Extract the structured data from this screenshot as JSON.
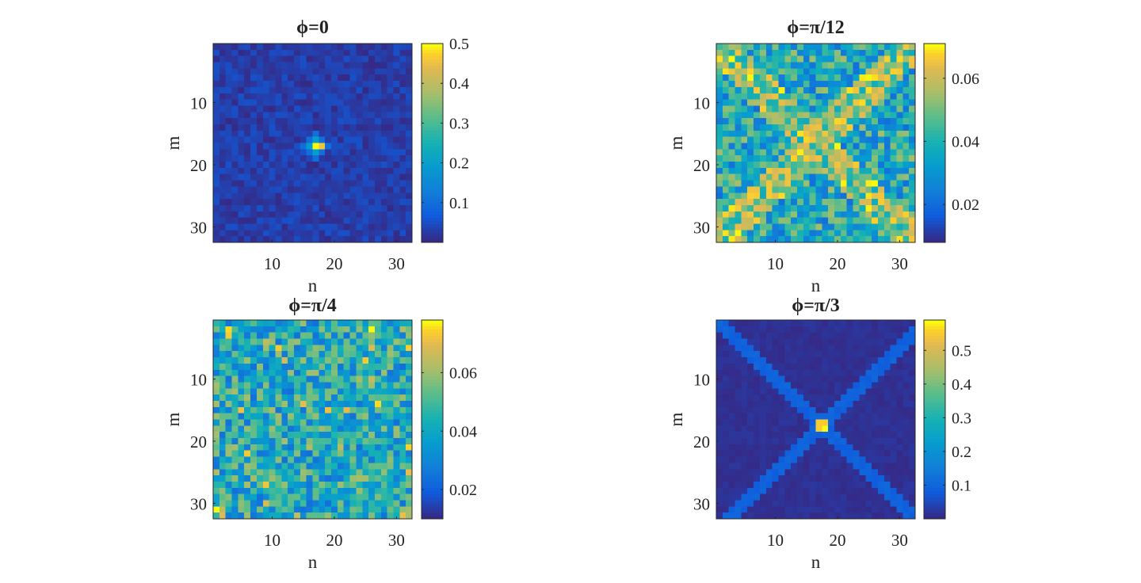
{
  "chart_data": [
    {
      "type": "heatmap",
      "title": "ϕ=0",
      "pattern": "center-peak",
      "grid_size": [
        32,
        32
      ],
      "xlabel": "n",
      "ylabel": "m",
      "xlim": [
        0.5,
        32.5
      ],
      "ylim": [
        0.5,
        32.5
      ],
      "xticks": [
        10,
        20,
        30
      ],
      "yticks": [
        10,
        20,
        30
      ],
      "peak_cell": {
        "n": 17,
        "m": 17,
        "value": 0.5
      },
      "background_range": [
        0.0,
        0.05
      ],
      "colorbar": {
        "min": 0.0,
        "max": 0.5,
        "ticks": [
          {
            "value": 0.1,
            "label": "0.1"
          },
          {
            "value": 0.2,
            "label": "0.2"
          },
          {
            "value": 0.3,
            "label": "0.3"
          },
          {
            "value": 0.4,
            "label": "0.4"
          },
          {
            "value": 0.5,
            "label": "0.5"
          }
        ]
      }
    },
    {
      "type": "heatmap",
      "title": "ϕ=π/12",
      "pattern": "noisy-cross",
      "grid_size": [
        32,
        32
      ],
      "xlabel": "n",
      "ylabel": "m",
      "xlim": [
        0.5,
        32.5
      ],
      "ylim": [
        0.5,
        32.5
      ],
      "xticks": [
        10,
        20,
        30
      ],
      "yticks": [
        10,
        20,
        30
      ],
      "value_range": [
        0.008,
        0.071
      ],
      "colorbar": {
        "min": 0.008,
        "max": 0.071,
        "ticks": [
          {
            "value": 0.02,
            "label": "0.02"
          },
          {
            "value": 0.04,
            "label": "0.04"
          },
          {
            "value": 0.06,
            "label": "0.06"
          }
        ]
      }
    },
    {
      "type": "heatmap",
      "title": "ϕ=π/4",
      "pattern": "uniform-noise",
      "grid_size": [
        32,
        32
      ],
      "xlabel": "n",
      "ylabel": "m",
      "xlim": [
        0.5,
        32.5
      ],
      "ylim": [
        0.5,
        32.5
      ],
      "xticks": [
        10,
        20,
        30
      ],
      "yticks": [
        10,
        20,
        30
      ],
      "value_range": [
        0.01,
        0.078
      ],
      "colorbar": {
        "min": 0.01,
        "max": 0.078,
        "ticks": [
          {
            "value": 0.02,
            "label": "0.02"
          },
          {
            "value": 0.04,
            "label": "0.04"
          },
          {
            "value": 0.06,
            "label": "0.06"
          }
        ]
      }
    },
    {
      "type": "heatmap",
      "title": "ϕ=π/3",
      "pattern": "center-peak-with-diagonals",
      "grid_size": [
        32,
        32
      ],
      "xlabel": "n",
      "ylabel": "m",
      "xlim": [
        0.5,
        32.5
      ],
      "ylim": [
        0.5,
        32.5
      ],
      "xticks": [
        10,
        20,
        30
      ],
      "yticks": [
        10,
        20,
        30
      ],
      "peak_cell": {
        "n": 18,
        "m": 18,
        "value": 0.59
      },
      "diagonal_value": 0.09,
      "background_range": [
        0.0,
        0.02
      ],
      "colorbar": {
        "min": 0.0,
        "max": 0.59,
        "ticks": [
          {
            "value": 0.1,
            "label": "0.1"
          },
          {
            "value": 0.2,
            "label": "0.2"
          },
          {
            "value": 0.3,
            "label": "0.3"
          },
          {
            "value": 0.4,
            "label": "0.4"
          },
          {
            "value": 0.5,
            "label": "0.5"
          }
        ]
      }
    }
  ]
}
